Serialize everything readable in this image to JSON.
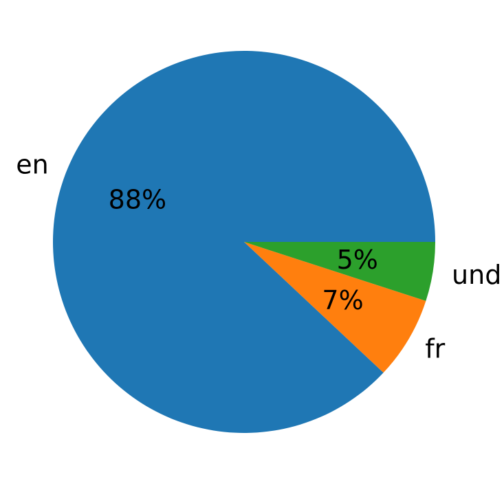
{
  "chart_data": {
    "type": "pie",
    "labels": [
      "en",
      "fr",
      "und"
    ],
    "values": [
      88,
      7,
      5
    ],
    "pct_labels": [
      "88%",
      "7%",
      "5%"
    ],
    "colors": [
      "#1f77b4",
      "#ff7f0e",
      "#2ca02c"
    ],
    "start_angle": 0,
    "direction": "counterclockwise",
    "pct_distance": 0.6,
    "label_distance": 1.1,
    "text_color": "#000000",
    "background": "#ffffff",
    "legend_position": "none",
    "grid": false
  }
}
